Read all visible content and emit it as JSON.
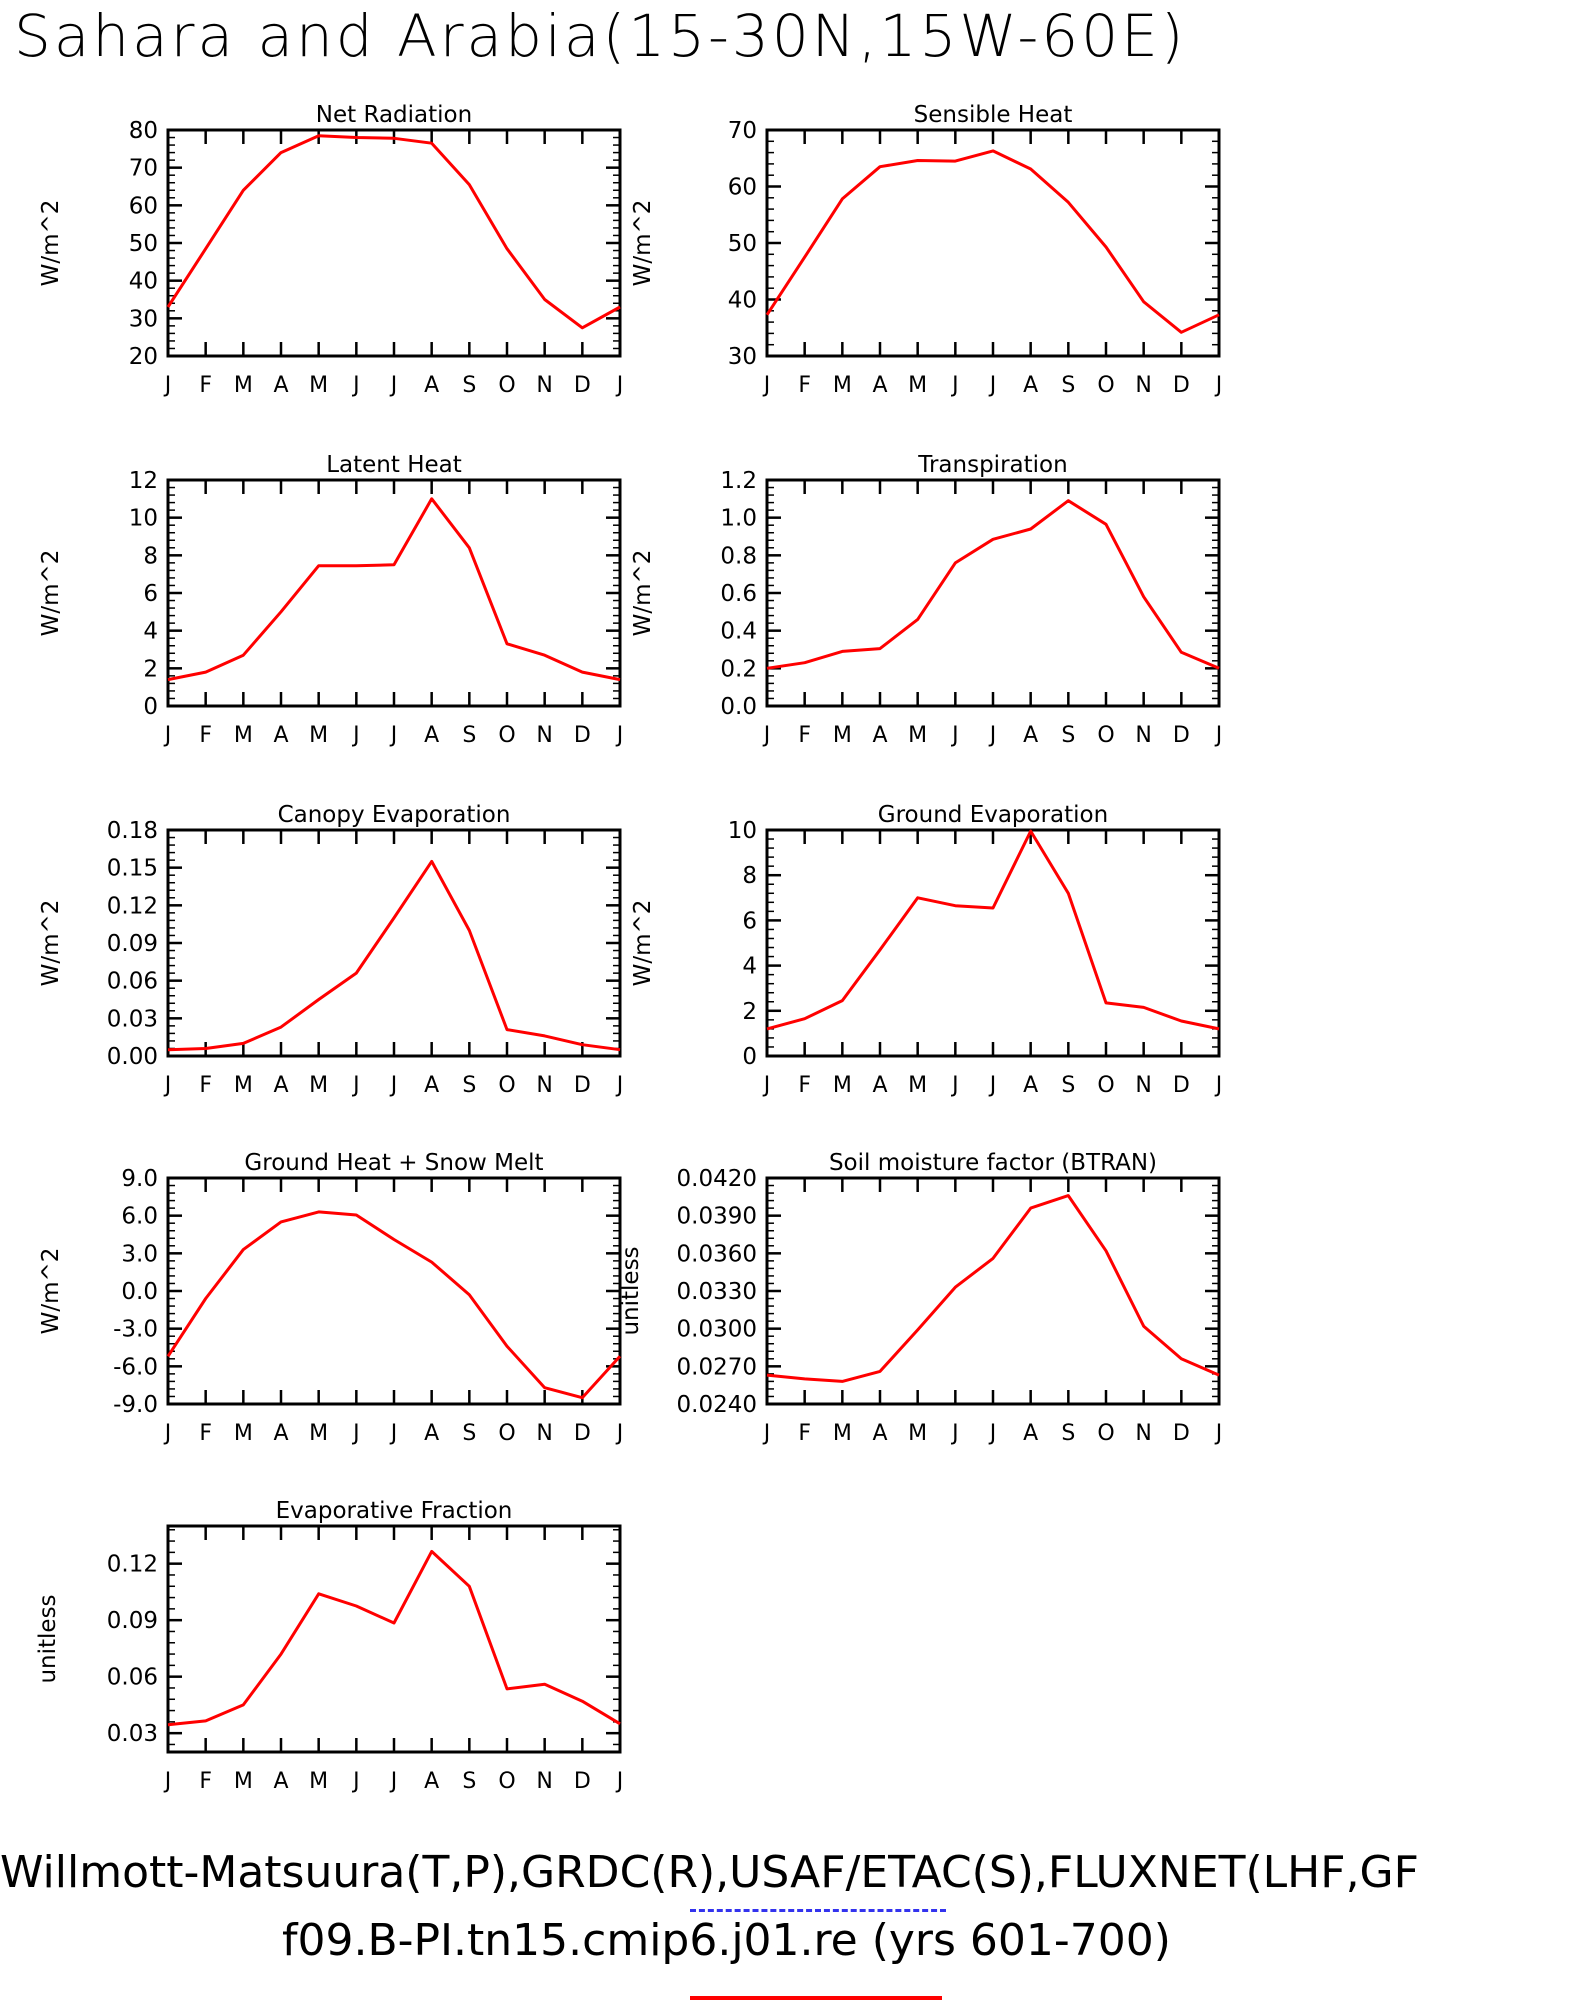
{
  "title": "Sahara and Arabia(15-30N,15W-60E)",
  "months": [
    "J",
    "F",
    "M",
    "A",
    "M",
    "J",
    "J",
    "A",
    "S",
    "O",
    "N",
    "D",
    "J"
  ],
  "line_color": "#ff0000",
  "footer": {
    "line1": "Willmott-Matsuura(T,P),GRDC(R),USAF/ETAC(S),FLUXNET(LHF,GF",
    "line2": "f09.B-PI.tn15.cmip6.j01.re (yrs 601-700)",
    "obs_dash_color": "#3333ee",
    "model_line_color": "#ff0000"
  },
  "chart_data": [
    {
      "type": "line",
      "title": "Net Radiation",
      "ylabel": "W/m^2",
      "ylim": [
        20,
        80
      ],
      "yticks": [
        "20",
        "30",
        "40",
        "50",
        "60",
        "70",
        "80"
      ],
      "x": [
        "J",
        "F",
        "M",
        "A",
        "M",
        "J",
        "J",
        "A",
        "S",
        "O",
        "N",
        "D",
        "J"
      ],
      "values": [
        33.0,
        48.5,
        64.0,
        74.0,
        78.5,
        78.0,
        77.8,
        76.5,
        65.5,
        48.5,
        35.0,
        27.5,
        33.0
      ]
    },
    {
      "type": "line",
      "title": "Sensible Heat",
      "ylabel": "W/m^2",
      "ylim": [
        30,
        70
      ],
      "yticks": [
        "30",
        "40",
        "50",
        "60",
        "70"
      ],
      "x": [
        "J",
        "F",
        "M",
        "A",
        "M",
        "J",
        "J",
        "A",
        "S",
        "O",
        "N",
        "D",
        "J"
      ],
      "values": [
        37.3,
        47.5,
        57.8,
        63.5,
        64.6,
        64.5,
        66.3,
        63.1,
        57.2,
        49.3,
        39.6,
        34.2,
        37.3
      ]
    },
    {
      "type": "line",
      "title": "Latent Heat",
      "ylabel": "W/m^2",
      "ylim": [
        0,
        12
      ],
      "yticks": [
        "0",
        "2",
        "4",
        "6",
        "8",
        "10",
        "12"
      ],
      "x": [
        "J",
        "F",
        "M",
        "A",
        "M",
        "J",
        "J",
        "A",
        "S",
        "O",
        "N",
        "D",
        "J"
      ],
      "values": [
        1.4,
        1.8,
        2.7,
        5.0,
        7.45,
        7.45,
        7.5,
        11.0,
        8.4,
        3.3,
        2.7,
        1.8,
        1.4
      ]
    },
    {
      "type": "line",
      "title": "Transpiration",
      "ylabel": "W/m^2",
      "ylim": [
        0,
        1.2
      ],
      "yticks": [
        "0.0",
        "0.2",
        "0.4",
        "0.6",
        "0.8",
        "1.0",
        "1.2"
      ],
      "x": [
        "J",
        "F",
        "M",
        "A",
        "M",
        "J",
        "J",
        "A",
        "S",
        "O",
        "N",
        "D",
        "J"
      ],
      "values": [
        0.2,
        0.23,
        0.29,
        0.305,
        0.46,
        0.76,
        0.885,
        0.94,
        1.09,
        0.965,
        0.58,
        0.285,
        0.2
      ]
    },
    {
      "type": "line",
      "title": "Canopy Evaporation",
      "ylabel": "W/m^2",
      "ylim": [
        0,
        0.18
      ],
      "yticks": [
        "0.00",
        "0.03",
        "0.06",
        "0.09",
        "0.12",
        "0.15",
        "0.18"
      ],
      "x": [
        "J",
        "F",
        "M",
        "A",
        "M",
        "J",
        "J",
        "A",
        "S",
        "O",
        "N",
        "D",
        "J"
      ],
      "values": [
        0.005,
        0.006,
        0.01,
        0.023,
        0.045,
        0.066,
        0.11,
        0.155,
        0.1,
        0.021,
        0.016,
        0.009,
        0.005
      ]
    },
    {
      "type": "line",
      "title": "Ground Evaporation",
      "ylabel": "W/m^2",
      "ylim": [
        0,
        10
      ],
      "yticks": [
        "0",
        "2",
        "4",
        "6",
        "8",
        "10"
      ],
      "x": [
        "J",
        "F",
        "M",
        "A",
        "M",
        "J",
        "J",
        "A",
        "S",
        "O",
        "N",
        "D",
        "J"
      ],
      "values": [
        1.2,
        1.65,
        2.45,
        4.7,
        7.0,
        6.65,
        6.55,
        9.95,
        7.2,
        2.35,
        2.15,
        1.55,
        1.2
      ]
    },
    {
      "type": "line",
      "title": "Ground Heat + Snow Melt",
      "ylabel": "W/m^2",
      "ylim": [
        -9,
        9
      ],
      "yticks": [
        "-9.0",
        "-6.0",
        "-3.0",
        "0.0",
        "3.0",
        "6.0",
        "9.0"
      ],
      "x": [
        "J",
        "F",
        "M",
        "A",
        "M",
        "J",
        "J",
        "A",
        "S",
        "O",
        "N",
        "D",
        "J"
      ],
      "values": [
        -5.2,
        -0.6,
        3.3,
        5.5,
        6.3,
        6.05,
        4.1,
        2.3,
        -0.3,
        -4.4,
        -7.7,
        -8.5,
        -5.2
      ]
    },
    {
      "type": "line",
      "title": "Soil moisture factor (BTRAN)",
      "ylabel": "unitless",
      "ylim": [
        0.024,
        0.042
      ],
      "yticks": [
        "0.0240",
        "0.0270",
        "0.0300",
        "0.0330",
        "0.0360",
        "0.0390",
        "0.0420"
      ],
      "x": [
        "J",
        "F",
        "M",
        "A",
        "M",
        "J",
        "J",
        "A",
        "S",
        "O",
        "N",
        "D",
        "J"
      ],
      "values": [
        0.0263,
        0.026,
        0.0258,
        0.0266,
        0.0299,
        0.0333,
        0.0356,
        0.0396,
        0.0406,
        0.0362,
        0.0302,
        0.0276,
        0.0263
      ]
    },
    {
      "type": "line",
      "title": "Evaporative Fraction",
      "ylabel": "unitless",
      "ylim": [
        0.02,
        0.14
      ],
      "yticks": [
        "0.03",
        "0.06",
        "0.09",
        "0.12"
      ],
      "x": [
        "J",
        "F",
        "M",
        "A",
        "M",
        "J",
        "J",
        "A",
        "S",
        "O",
        "N",
        "D",
        "J"
      ],
      "values": [
        0.0345,
        0.0365,
        0.045,
        0.072,
        0.104,
        0.0975,
        0.0885,
        0.1265,
        0.108,
        0.0535,
        0.056,
        0.047,
        0.035
      ]
    }
  ]
}
